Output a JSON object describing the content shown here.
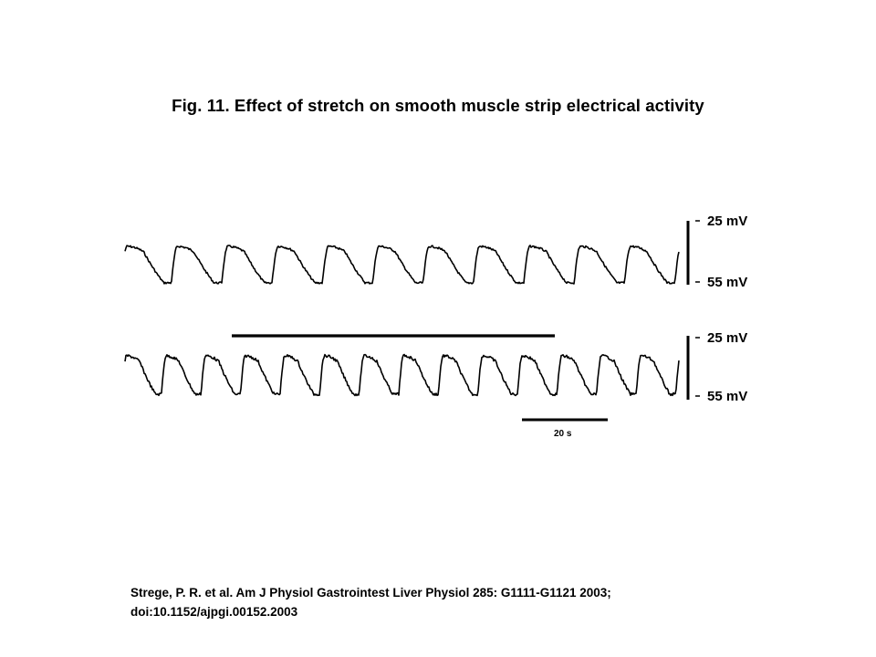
{
  "figure": {
    "title": "Fig. 11. Effect of stretch on smooth muscle strip electrical activity",
    "traces": [
      {
        "scale_top": "25 mV",
        "scale_bottom": "55 mV",
        "cycles": 11,
        "stretch_bar": false
      },
      {
        "scale_top": "25 mV",
        "scale_bottom": "55 mV",
        "cycles": 14,
        "stretch_bar": true
      }
    ],
    "time_scale_label": "20 s"
  },
  "citation": {
    "line1": "Strege, P. R. et al. Am J Physiol Gastrointest Liver Physiol 285: G1111-G1121 2003;",
    "line2": "doi:10.1152/ajpgi.00152.2003"
  }
}
